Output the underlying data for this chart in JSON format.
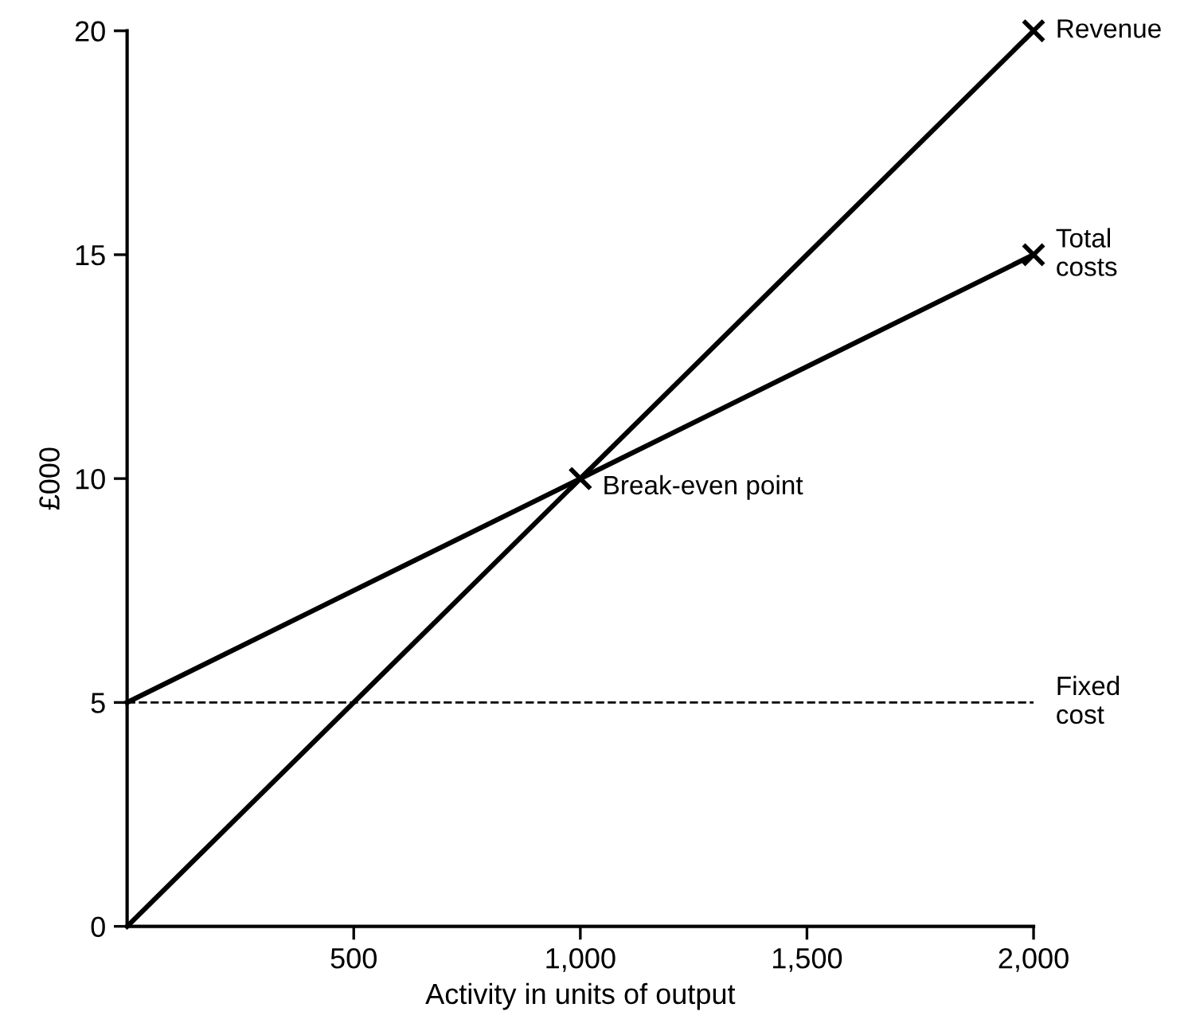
{
  "chart_data": {
    "type": "line",
    "xlabel": "Activity in units of output",
    "ylabel": "£000",
    "series": [
      {
        "name": "Revenue",
        "color": "#000000",
        "x": [
          0,
          1000,
          2000
        ],
        "values": [
          0,
          10,
          20
        ]
      },
      {
        "name": "Total\ncosts",
        "color": "#000000",
        "x": [
          0,
          1000,
          2000
        ],
        "values": [
          5,
          10,
          15
        ]
      }
    ],
    "ref_lines": [
      {
        "axis": "y",
        "value": 5,
        "label": "Fixed\ncost",
        "color": "#000000",
        "line_style": "dashed"
      }
    ],
    "annotations": [
      {
        "text": "Break-even point",
        "x": 1000,
        "y": 10
      }
    ],
    "xlim": [
      0,
      2000
    ],
    "xticks": [
      {
        "value": 500,
        "label": "500"
      },
      {
        "value": 1000,
        "label": "1,000"
      },
      {
        "value": 1500,
        "label": "1,500"
      },
      {
        "value": 2000,
        "label": "2,000"
      }
    ],
    "ylim": [
      0,
      20
    ],
    "yticks": [
      0,
      5,
      10,
      15,
      20
    ],
    "marker": "cross",
    "line_style": "solid",
    "grid": false,
    "legend": false
  }
}
